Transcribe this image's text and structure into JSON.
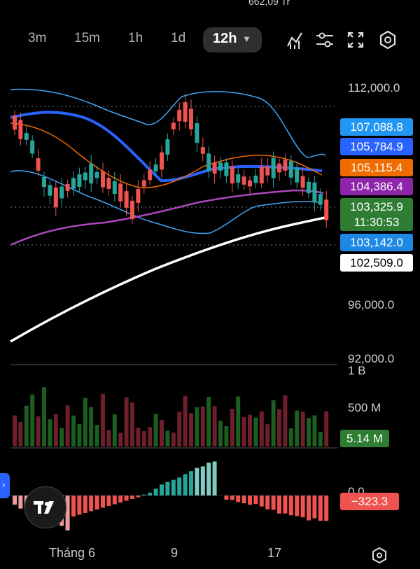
{
  "top_volume": "662,09 Tr",
  "timeframes": [
    "3m",
    "15m",
    "1h",
    "1d"
  ],
  "active_timeframe": "12h",
  "tools": [
    "indicators-icon",
    "settings-sliders-icon",
    "fullscreen-icon",
    "settings-gear-icon"
  ],
  "price_axis": [
    "112,000.0",
    "96,000.0",
    "92,000.0"
  ],
  "price_tags": [
    {
      "label": "107,088.8",
      "bg": "#2196f3"
    },
    {
      "label": "105,784.9",
      "bg": "#2962ff"
    },
    {
      "label": "105,115.4",
      "bg": "#ef6c00"
    },
    {
      "label": "104,386.4",
      "bg": "#8e24aa"
    },
    {
      "label": "103,325.9",
      "bg": "#2e7d32"
    },
    {
      "label": "11:30:53",
      "bg": "#2e7d32"
    },
    {
      "label": "103,142.0",
      "bg": "#1e88e5"
    },
    {
      "label": "102,509.0",
      "bg": "#ffffff",
      "fg": "#000000"
    }
  ],
  "volume_axis": [
    "1 B",
    "500 M"
  ],
  "volume_tag": {
    "label": "5.14 M",
    "bg": "#2e7d32"
  },
  "macd_axis": "0.0",
  "macd_tag": {
    "label": "−323.3",
    "bg": "#ef5350"
  },
  "dates": [
    "Tháng 6",
    "9",
    "17"
  ],
  "colors": {
    "up": "#26a69a",
    "down": "#ef5350",
    "bg": "#000000"
  }
}
